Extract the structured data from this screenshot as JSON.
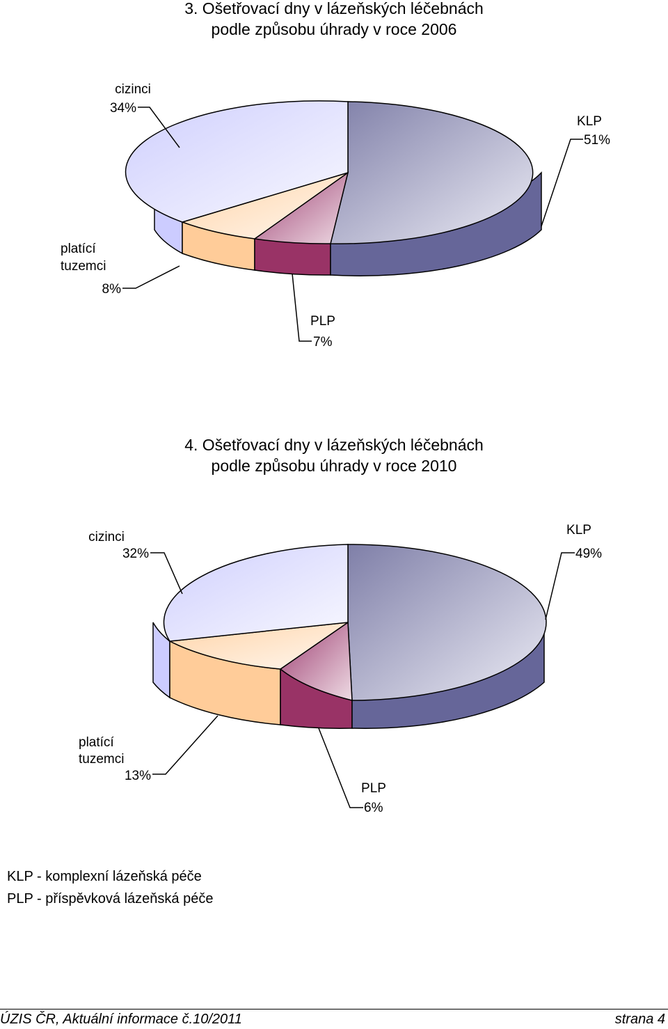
{
  "legend": {
    "klp": "KLP - komplexní lázeňská péče",
    "plp": "PLP - příspěvková lázeňská péče"
  },
  "footer": {
    "left": "ÚZIS ČR, Aktuální informace č.10/2011",
    "right": "strana 4"
  },
  "chart_data": [
    {
      "type": "pie",
      "title_line1": "3. Ošetřovací dny v lázeňských léčebnách",
      "title_line2": "podle způsobu úhrady v roce 2006",
      "slices": [
        {
          "name": "KLP",
          "value": 51,
          "label": "51%",
          "color": "#666699"
        },
        {
          "name": "PLP",
          "value": 7,
          "label": "7%",
          "color": "#993366"
        },
        {
          "name_line1": "platící",
          "name_line2": "tuzemci",
          "value": 8,
          "label": "8%",
          "color": "#FFCC99"
        },
        {
          "name": "cizinci",
          "value": 34,
          "label": "34%",
          "color": "#CCCCFF"
        }
      ]
    },
    {
      "type": "pie",
      "title_line1": "4. Ošetřovací dny v lázeňských léčebnách",
      "title_line2": "podle způsobu úhrady v roce 2010",
      "slices": [
        {
          "name": "KLP",
          "value": 49,
          "label": "49%",
          "color": "#666699"
        },
        {
          "name": "PLP",
          "value": 6,
          "label": "6%",
          "color": "#993366"
        },
        {
          "name_line1": "platící",
          "name_line2": "tuzemci",
          "value": 13,
          "label": "13%",
          "color": "#FFCC99"
        },
        {
          "name": "cizinci",
          "value": 32,
          "label": "32%",
          "color": "#CCCCFF"
        }
      ]
    }
  ]
}
